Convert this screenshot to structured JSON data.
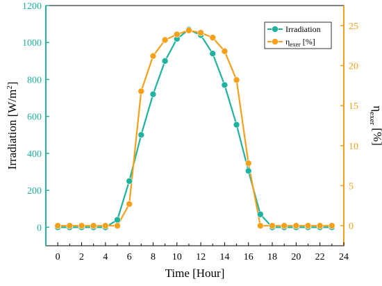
{
  "colors": {
    "left_axis": "#1fb29e",
    "right_axis": "#f5a01a",
    "series_irradiation": "#1fb29e",
    "series_eta": "#f5a01a",
    "frame": "#000000"
  },
  "chart_data": {
    "type": "line",
    "xlabel": "Time [Hour]",
    "ylabel_left": {
      "main": "Irradiation [W/m",
      "sup": "2",
      "tail": "]"
    },
    "ylabel_right": {
      "main": "η",
      "sub": "exer",
      "tail": " [%]"
    },
    "xlim": [
      -1,
      24
    ],
    "ylim_left": [
      -100,
      1200
    ],
    "ylim_right": [
      -2.5,
      27.5
    ],
    "xticks": [
      0,
      2,
      4,
      6,
      8,
      10,
      12,
      14,
      16,
      18,
      20,
      22,
      24
    ],
    "yticks_left": [
      0,
      200,
      400,
      600,
      800,
      1000,
      1200
    ],
    "yticks_right": [
      0,
      5,
      10,
      15,
      20,
      25
    ],
    "legend_position": "top-right",
    "grid": false,
    "series": [
      {
        "name": "Irradiation",
        "legend": {
          "main": "Irradiation",
          "sub": "",
          "tail": ""
        },
        "axis": "left",
        "x": [
          0,
          1,
          2,
          3,
          4,
          5,
          6,
          7,
          8,
          9,
          10,
          11,
          12,
          13,
          14,
          15,
          16,
          17,
          18,
          19,
          20,
          21,
          22,
          23
        ],
        "values": [
          0,
          0,
          0,
          0,
          0,
          40,
          250,
          500,
          720,
          900,
          1020,
          1070,
          1040,
          940,
          770,
          555,
          305,
          70,
          0,
          0,
          0,
          0,
          0,
          0
        ]
      },
      {
        "name": "ηexer [%]",
        "legend": {
          "main": "η",
          "sub": "exer",
          "tail": " [%]"
        },
        "axis": "right",
        "x": [
          0,
          1,
          2,
          3,
          4,
          5,
          6,
          7,
          8,
          9,
          10,
          11,
          12,
          13,
          14,
          15,
          16,
          17,
          18,
          19,
          20,
          21,
          22,
          23
        ],
        "values": [
          0,
          0,
          0,
          0,
          0,
          0,
          2.7,
          16.8,
          21.2,
          23.2,
          23.9,
          24.4,
          24.1,
          23.5,
          21.8,
          18.2,
          7.8,
          0,
          0,
          0,
          0,
          0,
          0,
          0
        ]
      }
    ]
  }
}
